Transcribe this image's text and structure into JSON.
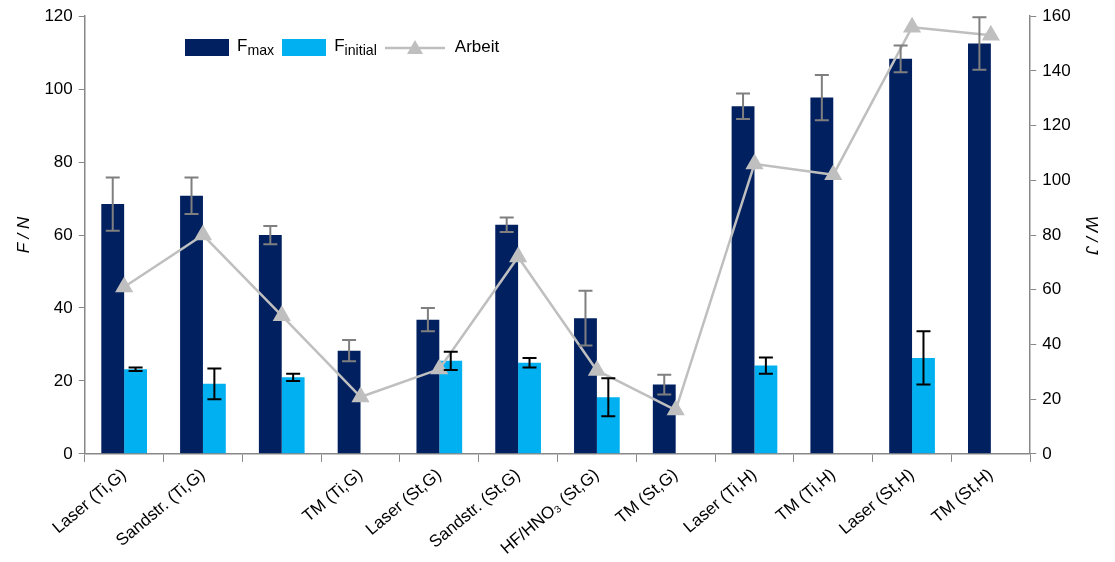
{
  "chart_data": {
    "type": "bar",
    "ylabel": "F / N",
    "y2label": "W / J",
    "categories": [
      "Laser (Ti,G)",
      "Sandstr. (Ti,G)",
      null,
      "TM (Ti,G)",
      "Laser (St,G)",
      "Sandstr. (St,G)",
      "HF/HNO₃ (St,G)",
      "TM (St,G)",
      "Laser (Ti,H)",
      "TM (Ti,H)",
      "Laser (St,H)",
      "TM (St,H)"
    ],
    "series": [
      {
        "name": "F$_{max}$",
        "color": "#002060",
        "values": [
          68.5,
          70.8,
          60,
          28.3,
          36.8,
          62.8,
          37.2,
          19,
          95.3,
          97.7,
          108.3,
          112.5
        ],
        "errors": [
          7.3,
          5,
          2.5,
          2.9,
          3.2,
          2,
          7.5,
          2.7,
          3.5,
          6.2,
          3.7,
          7.2
        ]
      },
      {
        "name": "F$_{initial}$",
        "color": "#00b0f0",
        "values": [
          23.2,
          19.2,
          21,
          0,
          25.5,
          25,
          15.5,
          0,
          24.2,
          0,
          26.3,
          0
        ],
        "errors": [
          0.5,
          4.2,
          1,
          null,
          2.5,
          1.3,
          5.2,
          null,
          2.2,
          null,
          7.3,
          null
        ]
      },
      {
        "name": "Arbeit",
        "type": "line",
        "axis": "y2",
        "color": "#bfbfbf",
        "marker": "triangle",
        "values": [
          61,
          80,
          50.5,
          20.8,
          31,
          72,
          30.5,
          16,
          106,
          102,
          156,
          153
        ]
      }
    ],
    "ylim": [
      0,
      120
    ],
    "yticks": [
      0,
      20,
      40,
      60,
      80,
      100,
      120
    ],
    "y2lim": [
      0,
      160
    ],
    "y2ticks": [
      0,
      20,
      40,
      60,
      80,
      100,
      120,
      140,
      160
    ],
    "grid": false,
    "legend": "top left"
  }
}
